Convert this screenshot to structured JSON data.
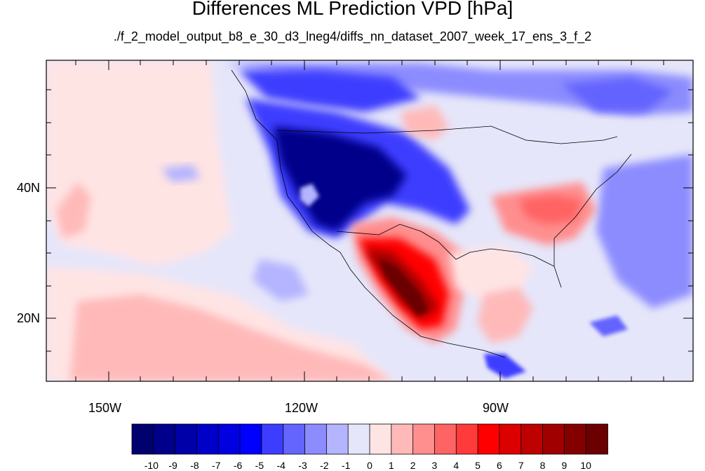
{
  "title": "Differences ML Prediction VPD [hPa]",
  "subtitle": "./f_2_model_output_b8_e_30_d3_lneg4/diffs_nn_dataset_2007_week_17_ens_3_f_2",
  "axes": {
    "lat_labels": [
      "40N",
      "20N"
    ],
    "lon_labels": [
      "150W",
      "120W",
      "90W"
    ]
  },
  "colorbar": {
    "labels": [
      "-10",
      "-9",
      "-8",
      "-7",
      "-6",
      "-5",
      "-4",
      "-3",
      "-2",
      "-1",
      "0",
      "1",
      "2",
      "3",
      "4",
      "5",
      "6",
      "7",
      "8",
      "9",
      "10"
    ],
    "colors": [
      "#00006e",
      "#00008a",
      "#0000a8",
      "#0000c8",
      "#0000e0",
      "#0000ff",
      "#3d3dff",
      "#6464ff",
      "#8c8cff",
      "#b4b4ff",
      "#e6e6fa",
      "#ffe4e4",
      "#ffb9b9",
      "#ff8e8e",
      "#ff6464",
      "#ff3a3a",
      "#ff0000",
      "#dc0000",
      "#bd0000",
      "#a00000",
      "#840000",
      "#6a0000"
    ]
  },
  "map_regions": [
    {
      "name": "pacific-northwest-west-negative",
      "value": -10
    },
    {
      "name": "mexico-positive",
      "value": 10
    },
    {
      "name": "southeast-us-positive",
      "value": 3
    },
    {
      "name": "canada-negative",
      "value": -4
    },
    {
      "name": "subtropical-pacific-positive",
      "value": 1
    }
  ]
}
